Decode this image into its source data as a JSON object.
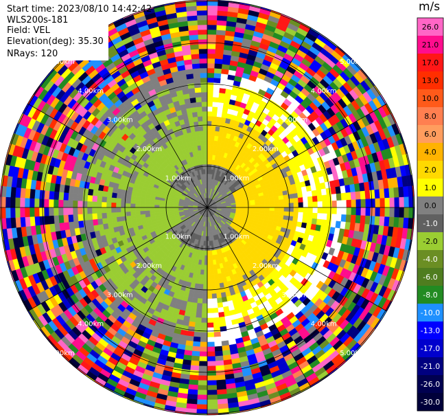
{
  "info": {
    "start_time": "Start time: 2023/08/10 14:42:42",
    "instrument": "WLS200s-181",
    "field": "Field: VEL",
    "elevation": "Elevation(deg): 35.30",
    "nrays": "NRays: 120"
  },
  "chart_data": {
    "type": "heatmap",
    "subtype": "ppi-polar",
    "field": "VEL",
    "units": "m/s",
    "nrays": 120,
    "max_range_km": 6,
    "range_rings_km": [
      1,
      2,
      3,
      4,
      5
    ],
    "ring_labels": [
      "1.00km",
      "2.00km",
      "3.00km",
      "4.00km",
      "5.00km"
    ],
    "colorbar": {
      "title": "m/s",
      "ticks": [
        "26.0",
        "21.0",
        "17.0",
        "13.0",
        "10.0",
        "8.0",
        "6.0",
        "4.0",
        "2.0",
        "1.0",
        "0.0",
        "-1.0",
        "-2.0",
        "-4.0",
        "-6.0",
        "-8.0",
        "-10.0",
        "-13.0",
        "-17.0",
        "-21.0",
        "-26.0",
        "-30.0"
      ],
      "colors": [
        "#ff66c6",
        "#ff0d8d",
        "#ff1717",
        "#ff2e00",
        "#ff5a1a",
        "#ff7f50",
        "#ff9d5e",
        "#ffb300",
        "#ffd900",
        "#ffff00",
        "#808080",
        "#606060",
        "#9acd32",
        "#6b8e23",
        "#4f7d1f",
        "#228b22",
        "#1e90ff",
        "#0000ff",
        "#0000cd",
        "#000080",
        "#000050",
        "#00003a"
      ]
    }
  }
}
